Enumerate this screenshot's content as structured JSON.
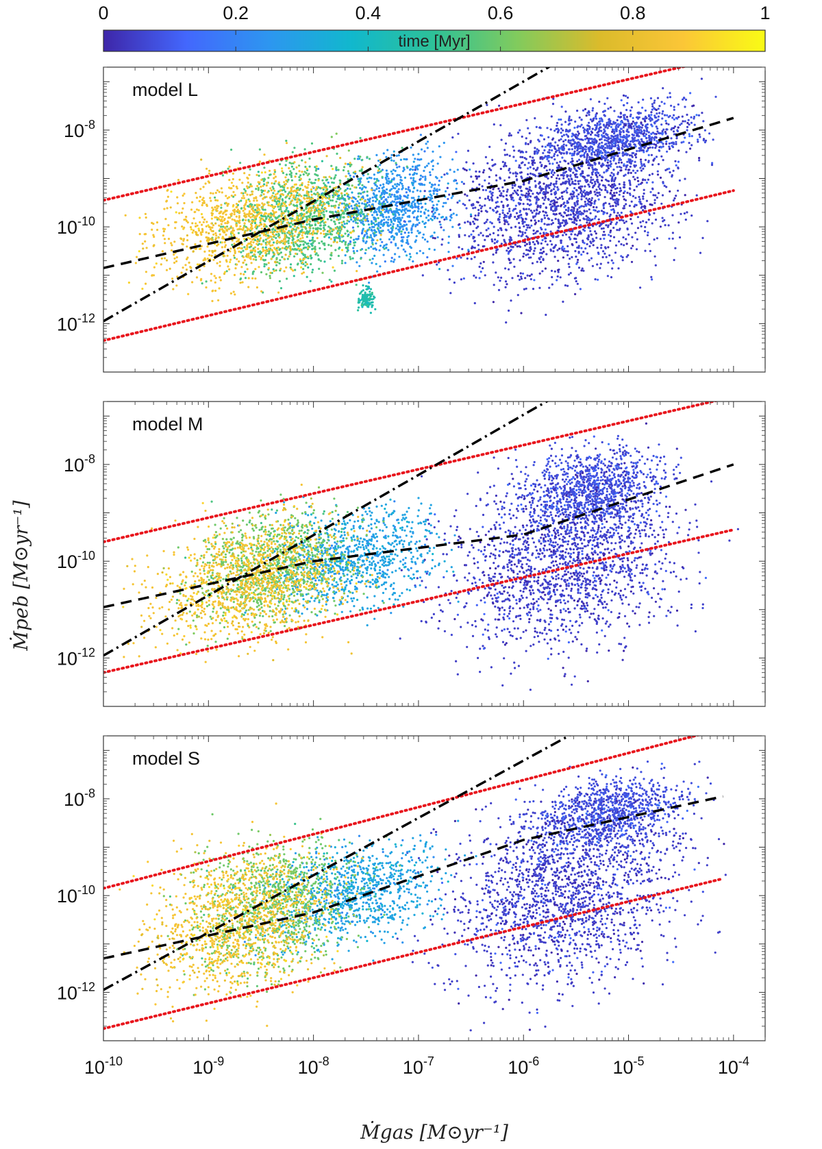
{
  "chart_data": {
    "type": "scatter",
    "xscale": "log",
    "yscale": "log",
    "xlabel": "Ṁgas [M⊙yr⁻¹]",
    "ylabel": "Ṁpeb [M⊙yr⁻¹]",
    "xlim": [
      1e-10,
      0.0002
    ],
    "ylim": [
      1e-13,
      2e-07
    ],
    "x_tick_labels": [
      {
        "base": "10",
        "exp": "-10"
      },
      {
        "base": "10",
        "exp": "-9"
      },
      {
        "base": "10",
        "exp": "-8"
      },
      {
        "base": "10",
        "exp": "-7"
      },
      {
        "base": "10",
        "exp": "-6"
      },
      {
        "base": "10",
        "exp": "-5"
      },
      {
        "base": "10",
        "exp": "-4"
      }
    ],
    "x_tick_values": [
      -10,
      -9,
      -8,
      -7,
      -6,
      -5,
      -4
    ],
    "y_tick_labels": [
      {
        "base": "10",
        "exp": "-12"
      },
      {
        "base": "10",
        "exp": "-10"
      },
      {
        "base": "10",
        "exp": "-8"
      }
    ],
    "y_tick_values": [
      -12,
      -10,
      -8
    ],
    "colorbar": {
      "label": "time [Myr]",
      "range": [
        0,
        1
      ],
      "ticks": [
        "0",
        "0.2",
        "0.4",
        "0.6",
        "0.8",
        "1"
      ],
      "tick_values": [
        0,
        0.2,
        0.4,
        0.6,
        0.8,
        1
      ],
      "colormap": [
        "#3e26a8",
        "#4367fd",
        "#2d96f0",
        "#11b8cd",
        "#2ec197",
        "#81cb5d",
        "#dbbb2b",
        "#fbc637",
        "#f9fb15"
      ]
    },
    "panels": [
      {
        "label": "model L",
        "upper_envelope_dotted": {
          "color": "#e8141c",
          "log_points": [
            [
              -10,
              -9.45
            ],
            [
              -4,
              -6.45
            ]
          ]
        },
        "lower_envelope_dotted": {
          "color": "#e8141c",
          "log_points": [
            [
              -10,
              -12.35
            ],
            [
              -4,
              -9.25
            ]
          ]
        },
        "fit_dash_dot": {
          "color": "#000000",
          "log_points": [
            [
              -10,
              -11.95
            ],
            [
              -5.6,
              -6.5
            ]
          ]
        },
        "fit_dashed": {
          "color": "#000000",
          "log_points": [
            [
              -10,
              -10.85
            ],
            [
              -8,
              -9.85
            ],
            [
              -6,
              -9.05
            ],
            [
              -4,
              -7.75
            ]
          ]
        },
        "clusters": [
          {
            "time_myr": 0.05,
            "x_range": [
              -7.0,
              -4.2
            ],
            "y_range": [
              -11.5,
              -7.4
            ],
            "count": 1900
          },
          {
            "time_myr": 0.08,
            "x_range": [
              -6.0,
              -4.2
            ],
            "y_range": [
              -9.0,
              -7.3
            ],
            "count": 900
          },
          {
            "time_myr": 0.25,
            "x_range": [
              -8.0,
              -6.5
            ],
            "y_range": [
              -11.0,
              -8.2
            ],
            "count": 900
          },
          {
            "time_myr": 0.55,
            "x_range": [
              -9.0,
              -7.2
            ],
            "y_range": [
              -11.3,
              -8.3
            ],
            "count": 1100
          },
          {
            "time_myr": 0.85,
            "x_range": [
              -9.8,
              -7.4
            ],
            "y_range": [
              -11.4,
              -8.5
            ],
            "count": 1100
          },
          {
            "time_myr": 0.45,
            "x_range": [
              -7.6,
              -7.4
            ],
            "y_range": [
              -11.8,
              -11.2
            ],
            "count": 120
          }
        ]
      },
      {
        "label": "model M",
        "upper_envelope_dotted": {
          "color": "#e8141c",
          "log_points": [
            [
              -10,
              -9.6
            ],
            [
              -4,
              -6.6
            ]
          ]
        },
        "lower_envelope_dotted": {
          "color": "#e8141c",
          "log_points": [
            [
              -10,
              -12.3
            ],
            [
              -4,
              -9.35
            ]
          ]
        },
        "fit_dash_dot": {
          "color": "#000000",
          "log_points": [
            [
              -10,
              -11.95
            ],
            [
              -5.7,
              -6.6
            ]
          ]
        },
        "fit_dashed": {
          "color": "#000000",
          "log_points": [
            [
              -10,
              -10.95
            ],
            [
              -8,
              -10.0
            ],
            [
              -6,
              -9.45
            ],
            [
              -4,
              -8.0
            ]
          ]
        },
        "clusters": [
          {
            "time_myr": 0.05,
            "x_range": [
              -7.0,
              -4.2
            ],
            "y_range": [
              -12.3,
              -7.6
            ],
            "count": 1800
          },
          {
            "time_myr": 0.08,
            "x_range": [
              -6.2,
              -4.5
            ],
            "y_range": [
              -9.6,
              -7.4
            ],
            "count": 900
          },
          {
            "time_myr": 0.3,
            "x_range": [
              -8.6,
              -6.6
            ],
            "y_range": [
              -11.3,
              -8.6
            ],
            "count": 900
          },
          {
            "time_myr": 0.6,
            "x_range": [
              -9.4,
              -7.4
            ],
            "y_range": [
              -11.6,
              -8.7
            ],
            "count": 1000
          },
          {
            "time_myr": 0.85,
            "x_range": [
              -9.8,
              -7.4
            ],
            "y_range": [
              -12.0,
              -8.8
            ],
            "count": 1100
          }
        ]
      },
      {
        "label": "model S",
        "upper_envelope_dotted": {
          "color": "#e8141c",
          "log_points": [
            [
              -10,
              -9.85
            ],
            [
              -4.1,
              -6.55
            ]
          ]
        },
        "lower_envelope_dotted": {
          "color": "#e8141c",
          "log_points": [
            [
              -10,
              -12.75
            ],
            [
              -4.1,
              -9.65
            ]
          ]
        },
        "fit_dash_dot": {
          "color": "#000000",
          "log_points": [
            [
              -10,
              -11.95
            ],
            [
              -5.4,
              -6.5
            ]
          ]
        },
        "fit_dashed": {
          "color": "#000000",
          "log_points": [
            [
              -10,
              -11.3
            ],
            [
              -8,
              -10.35
            ],
            [
              -6,
              -8.85
            ],
            [
              -4.1,
              -7.95
            ]
          ]
        },
        "clusters": [
          {
            "time_myr": 0.05,
            "x_range": [
              -7.0,
              -4.2
            ],
            "y_range": [
              -12.3,
              -7.6
            ],
            "count": 1800
          },
          {
            "time_myr": 0.08,
            "x_range": [
              -6.0,
              -4.3
            ],
            "y_range": [
              -9.2,
              -7.4
            ],
            "count": 900
          },
          {
            "time_myr": 0.3,
            "x_range": [
              -8.6,
              -6.6
            ],
            "y_range": [
              -11.2,
              -8.7
            ],
            "count": 900
          },
          {
            "time_myr": 0.6,
            "x_range": [
              -9.4,
              -7.4
            ],
            "y_range": [
              -12.0,
              -8.5
            ],
            "count": 1000
          },
          {
            "time_myr": 0.85,
            "x_range": [
              -9.8,
              -7.6
            ],
            "y_range": [
              -12.4,
              -8.6
            ],
            "count": 1100
          }
        ]
      }
    ]
  }
}
